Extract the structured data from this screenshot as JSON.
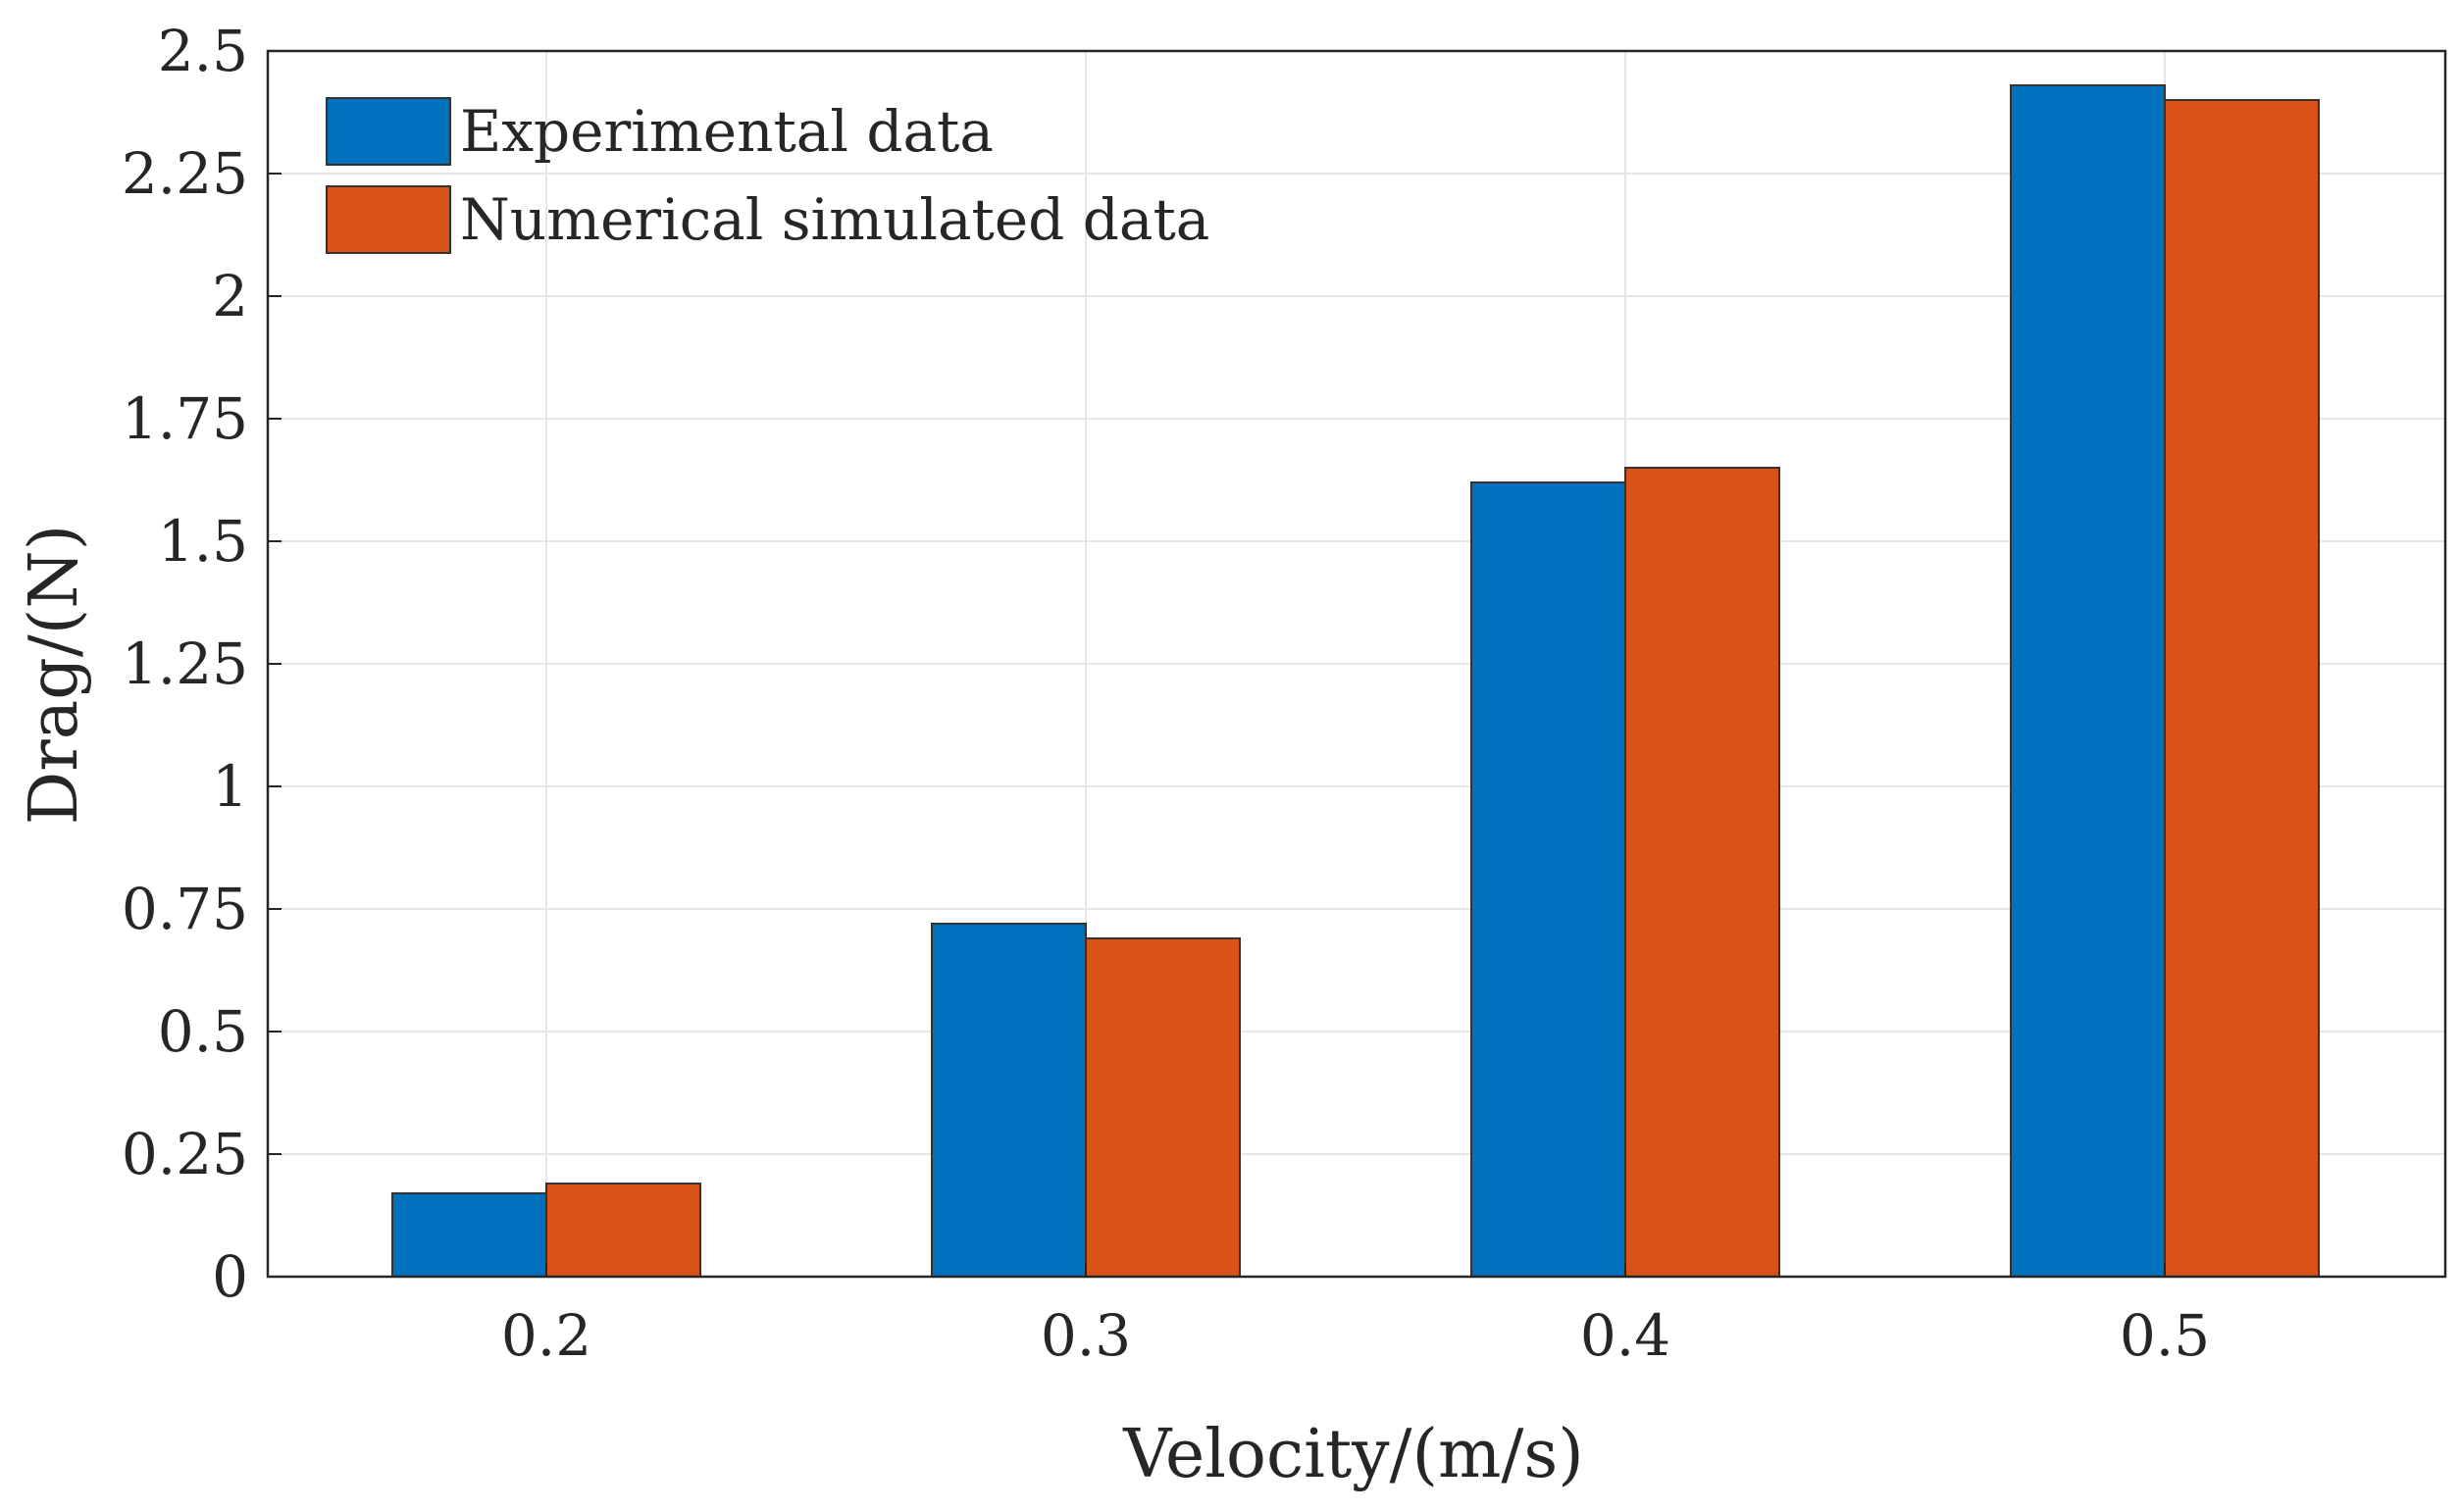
{
  "chart_data": {
    "type": "bar",
    "title": "",
    "xlabel": "Velocity/(m/s)",
    "ylabel": "Drag/(N)",
    "categories": [
      "0.2",
      "0.3",
      "0.4",
      "0.5"
    ],
    "series": [
      {
        "name": "Experimental data",
        "color": "#0072bd",
        "values": [
          0.17,
          0.72,
          1.62,
          2.43
        ]
      },
      {
        "name": "Numerical simulated data",
        "color": "#d95319",
        "values": [
          0.19,
          0.69,
          1.65,
          2.4
        ]
      }
    ],
    "ylim": [
      0,
      2.5
    ],
    "yticks": [
      "0",
      "0.25",
      "0.5",
      "0.75",
      "1",
      "1.25",
      "1.5",
      "1.75",
      "2",
      "2.25",
      "2.5"
    ],
    "grid": true,
    "legend_position": "top-left"
  }
}
